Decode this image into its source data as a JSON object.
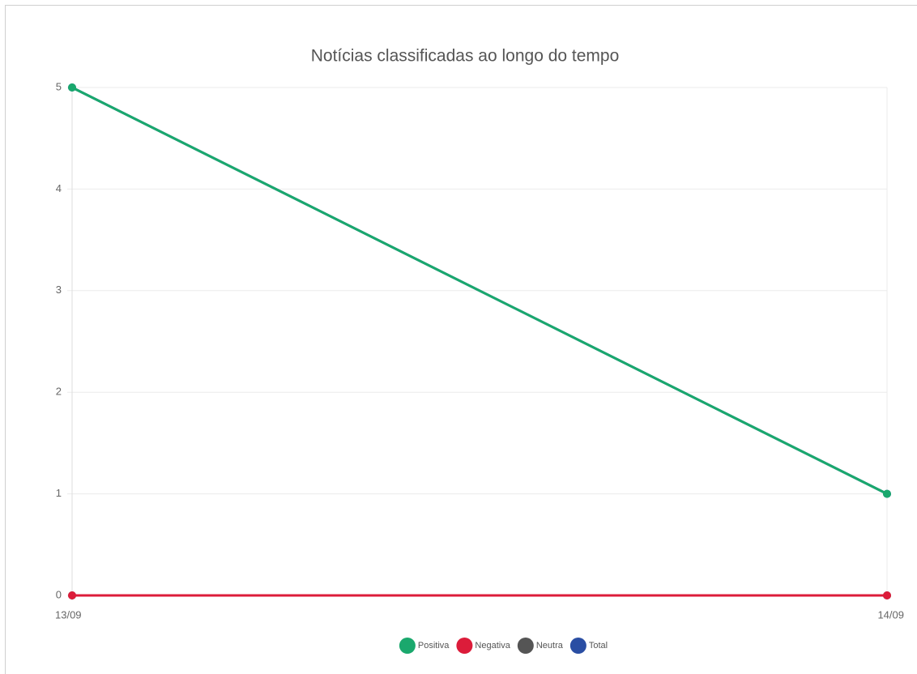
{
  "chart_data": {
    "type": "line",
    "title": "Notícias classificadas ao longo do tempo",
    "categories": [
      "13/09",
      "14/09"
    ],
    "series": [
      {
        "name": "Positiva",
        "color": "#1aa86d",
        "values": [
          5,
          1
        ]
      },
      {
        "name": "Negativa",
        "color": "#dc1c3a",
        "values": [
          0,
          0
        ]
      },
      {
        "name": "Neutra",
        "color": "#555555",
        "values": [
          0,
          0
        ]
      },
      {
        "name": "Total",
        "color": "#2a4ea3",
        "values": [
          5,
          1
        ]
      }
    ],
    "ylim": [
      0,
      5
    ],
    "yticks": [
      0,
      1,
      2,
      3,
      4,
      5
    ],
    "grid": true,
    "legend": "bottom"
  }
}
